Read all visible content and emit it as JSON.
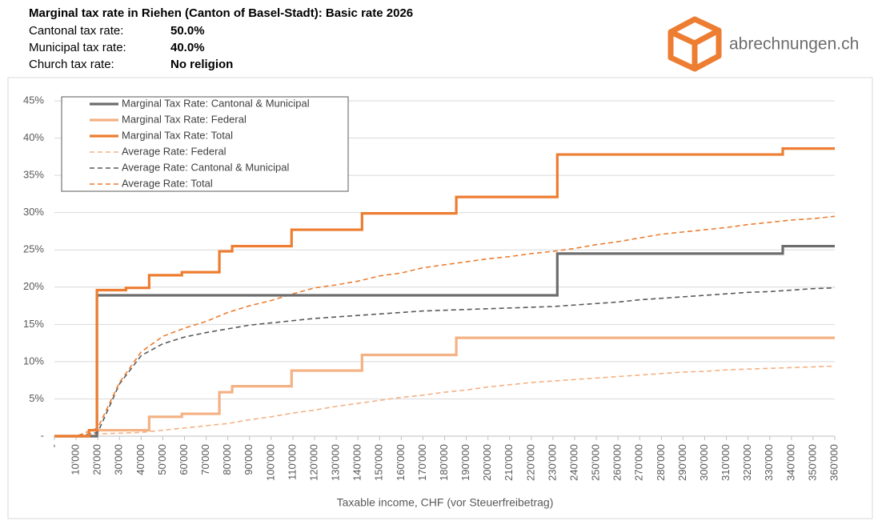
{
  "chart_data": {
    "type": "line",
    "title": "Marginal tax rate in Riehen (Canton of Basel-Stadt): Basic rate 2026",
    "info": [
      {
        "label": "Cantonal tax rate:",
        "value": "50.0%"
      },
      {
        "label": "Municipal tax rate:",
        "value": "40.0%"
      },
      {
        "label": "Church tax rate:",
        "value": "No religion"
      }
    ],
    "brand": "abrechnungen.ch",
    "x_label": "Taxable income, CHF (vor Steuerfreibetrag)",
    "xlim": [
      0,
      360000
    ],
    "ylim": [
      0,
      45
    ],
    "yticks": [
      {
        "value": 0,
        "label": "-"
      },
      {
        "value": 5,
        "label": "5%"
      },
      {
        "value": 10,
        "label": "10%"
      },
      {
        "value": 15,
        "label": "15%"
      },
      {
        "value": 20,
        "label": "20%"
      },
      {
        "value": 25,
        "label": "25%"
      },
      {
        "value": 30,
        "label": "30%"
      },
      {
        "value": 35,
        "label": "35%"
      },
      {
        "value": 40,
        "label": "40%"
      },
      {
        "value": 45,
        "label": "45%"
      }
    ],
    "xticks": [
      {
        "value": 0,
        "label": "-"
      },
      {
        "value": 10000,
        "label": "10'000"
      },
      {
        "value": 20000,
        "label": "20'000"
      },
      {
        "value": 30000,
        "label": "30'000"
      },
      {
        "value": 40000,
        "label": "40'000"
      },
      {
        "value": 50000,
        "label": "50'000"
      },
      {
        "value": 60000,
        "label": "60'000"
      },
      {
        "value": 70000,
        "label": "70'000"
      },
      {
        "value": 80000,
        "label": "80'000"
      },
      {
        "value": 90000,
        "label": "90'000"
      },
      {
        "value": 100000,
        "label": "100'000"
      },
      {
        "value": 110000,
        "label": "110'000"
      },
      {
        "value": 120000,
        "label": "120'000"
      },
      {
        "value": 130000,
        "label": "130'000"
      },
      {
        "value": 140000,
        "label": "140'000"
      },
      {
        "value": 150000,
        "label": "150'000"
      },
      {
        "value": 160000,
        "label": "160'000"
      },
      {
        "value": 170000,
        "label": "170'000"
      },
      {
        "value": 180000,
        "label": "180'000"
      },
      {
        "value": 190000,
        "label": "190'000"
      },
      {
        "value": 200000,
        "label": "200'000"
      },
      {
        "value": 210000,
        "label": "210'000"
      },
      {
        "value": 220000,
        "label": "220'000"
      },
      {
        "value": 230000,
        "label": "230'000"
      },
      {
        "value": 240000,
        "label": "240'000"
      },
      {
        "value": 250000,
        "label": "250'000"
      },
      {
        "value": 260000,
        "label": "260'000"
      },
      {
        "value": 270000,
        "label": "270'000"
      },
      {
        "value": 280000,
        "label": "280'000"
      },
      {
        "value": 290000,
        "label": "290'000"
      },
      {
        "value": 300000,
        "label": "300'000"
      },
      {
        "value": 310000,
        "label": "310'000"
      },
      {
        "value": 320000,
        "label": "320'000"
      },
      {
        "value": 330000,
        "label": "330'000"
      },
      {
        "value": 340000,
        "label": "340'000"
      },
      {
        "value": 350000,
        "label": "350'000"
      },
      {
        "value": 360000,
        "label": "360'000"
      }
    ],
    "grid": true,
    "legend": "upper left",
    "series": [
      {
        "name": "Marginal Tax Rate: Cantonal & Municipal",
        "color": "#6d6d6d",
        "dashed": false,
        "x": [
          0,
          19600,
          19600,
          232000,
          232000,
          336000,
          336000,
          360000
        ],
        "values": [
          0,
          0,
          18.9,
          18.9,
          24.5,
          24.5,
          25.5,
          25.5
        ]
      },
      {
        "name": "Marginal Tax Rate: Federal",
        "color": "#f4b183",
        "dashed": false,
        "x": [
          0,
          16000,
          16000,
          43700,
          43700,
          58800,
          58800,
          76100,
          76100,
          82000,
          82000,
          109400,
          109400,
          141900,
          141900,
          185400,
          185400,
          360000
        ],
        "values": [
          0,
          0,
          0.8,
          0.8,
          2.6,
          2.6,
          3.0,
          3.0,
          5.9,
          5.9,
          6.7,
          6.7,
          8.8,
          8.8,
          10.9,
          10.9,
          13.2,
          13.2
        ]
      },
      {
        "name": "Marginal Tax Rate: Total",
        "color": "#ed7d31",
        "dashed": false,
        "x": [
          0,
          16000,
          16000,
          19600,
          19600,
          33000,
          33000,
          43700,
          43700,
          58800,
          58800,
          76100,
          76100,
          82000,
          82000,
          109400,
          109400,
          141900,
          141900,
          185400,
          185400,
          232000,
          232000,
          336000,
          336000,
          360000
        ],
        "values": [
          0,
          0,
          0.8,
          0.8,
          19.6,
          19.6,
          19.9,
          19.9,
          21.6,
          21.6,
          22.0,
          22.0,
          24.8,
          24.8,
          25.5,
          25.5,
          27.7,
          27.7,
          29.9,
          29.9,
          32.1,
          32.1,
          37.8,
          37.8,
          38.6,
          38.6
        ]
      },
      {
        "name": "Average Rate: Federal",
        "color": "#f4b183",
        "dashed": true,
        "x": [
          0,
          10000,
          20000,
          30000,
          40000,
          50000,
          60000,
          70000,
          80000,
          90000,
          100000,
          110000,
          120000,
          130000,
          140000,
          150000,
          160000,
          170000,
          180000,
          190000,
          200000,
          210000,
          220000,
          230000,
          240000,
          250000,
          260000,
          270000,
          280000,
          290000,
          300000,
          310000,
          320000,
          330000,
          340000,
          350000,
          360000
        ],
        "values": [
          0,
          0,
          0.3,
          0.4,
          0.5,
          0.8,
          1.1,
          1.4,
          1.7,
          2.2,
          2.6,
          3.1,
          3.5,
          4.0,
          4.4,
          4.8,
          5.2,
          5.5,
          5.9,
          6.2,
          6.6,
          6.9,
          7.2,
          7.4,
          7.6,
          7.8,
          8.0,
          8.2,
          8.4,
          8.6,
          8.7,
          8.9,
          9.0,
          9.1,
          9.2,
          9.3,
          9.4
        ]
      },
      {
        "name": "Average Rate: Cantonal & Municipal",
        "color": "#595959",
        "dashed": true,
        "x": [
          0,
          10000,
          20000,
          30000,
          40000,
          50000,
          60000,
          70000,
          80000,
          90000,
          100000,
          110000,
          120000,
          130000,
          140000,
          150000,
          160000,
          170000,
          180000,
          190000,
          200000,
          210000,
          220000,
          230000,
          240000,
          250000,
          260000,
          270000,
          280000,
          290000,
          300000,
          310000,
          320000,
          330000,
          340000,
          350000,
          360000
        ],
        "values": [
          0,
          0,
          0.5,
          7.0,
          10.8,
          12.4,
          13.3,
          13.9,
          14.4,
          14.9,
          15.2,
          15.5,
          15.8,
          16.0,
          16.2,
          16.4,
          16.6,
          16.8,
          16.9,
          17.0,
          17.1,
          17.2,
          17.3,
          17.4,
          17.6,
          17.8,
          18.0,
          18.3,
          18.5,
          18.7,
          18.9,
          19.1,
          19.3,
          19.4,
          19.6,
          19.8,
          19.9
        ]
      },
      {
        "name": "Average Rate: Total",
        "color": "#ed7d31",
        "dashed": true,
        "x": [
          0,
          10000,
          20000,
          30000,
          40000,
          50000,
          60000,
          70000,
          80000,
          90000,
          100000,
          110000,
          120000,
          130000,
          140000,
          150000,
          160000,
          170000,
          180000,
          190000,
          200000,
          210000,
          220000,
          230000,
          240000,
          250000,
          260000,
          270000,
          280000,
          290000,
          300000,
          310000,
          320000,
          330000,
          340000,
          350000,
          360000
        ],
        "values": [
          0,
          0,
          1.1,
          7.2,
          11.3,
          13.4,
          14.5,
          15.4,
          16.6,
          17.5,
          18.2,
          19.1,
          19.9,
          20.3,
          20.8,
          21.5,
          21.9,
          22.6,
          23.0,
          23.4,
          23.8,
          24.1,
          24.5,
          24.8,
          25.2,
          25.7,
          26.1,
          26.6,
          27.1,
          27.4,
          27.7,
          28.0,
          28.4,
          28.7,
          29.0,
          29.2,
          29.5
        ]
      }
    ]
  }
}
